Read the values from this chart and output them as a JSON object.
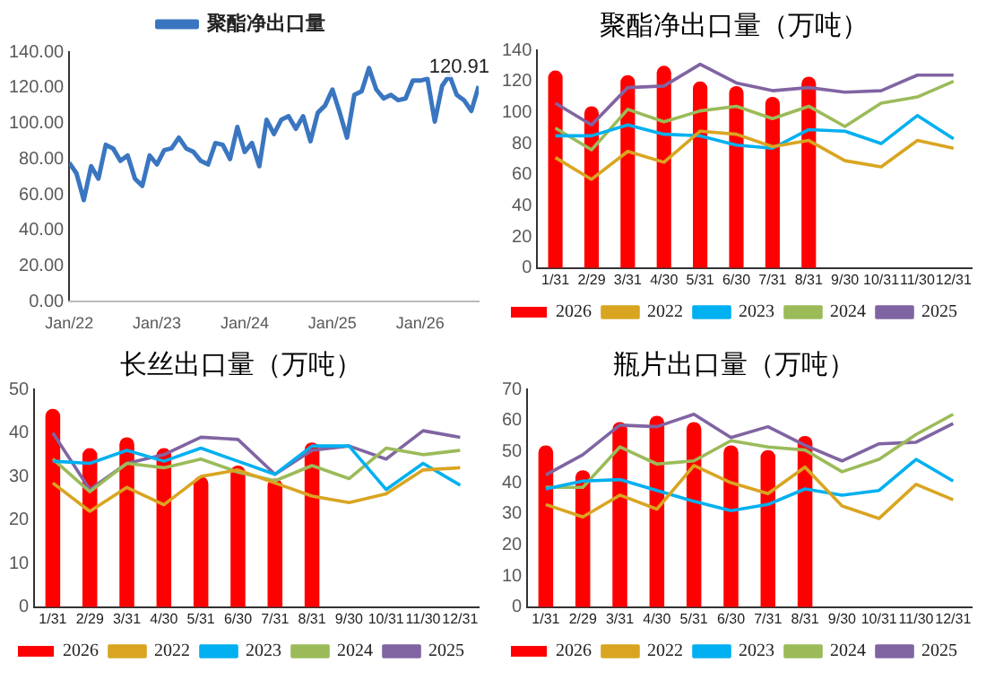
{
  "chart_data": [
    {
      "type": "line",
      "x": [
        "2022-01",
        "2022-02",
        "2022-03",
        "2022-04",
        "2022-05",
        "2022-06",
        "2022-07",
        "2022-08",
        "2022-09",
        "2022-10",
        "2022-11",
        "2022-12",
        "2023-01",
        "2023-02",
        "2023-03",
        "2023-04",
        "2023-05",
        "2023-06",
        "2023-07",
        "2023-08",
        "2023-09",
        "2023-10",
        "2023-11",
        "2023-12",
        "2024-01",
        "2024-02",
        "2024-03",
        "2024-04",
        "2024-05",
        "2024-06",
        "2024-07",
        "2024-08",
        "2024-09",
        "2024-10",
        "2024-11",
        "2024-12",
        "2025-01",
        "2025-02",
        "2025-03",
        "2025-04",
        "2025-05",
        "2025-06",
        "2025-07",
        "2025-08",
        "2025-09",
        "2025-10",
        "2025-11",
        "2025-12",
        "2026-01",
        "2026-02",
        "2026-03",
        "2026-04",
        "2026-05",
        "2026-06",
        "2026-07",
        "2026-08",
        "2026-09"
      ],
      "series": [
        {
          "name": "聚酯净出口量",
          "color": "#3a76c0",
          "values": [
            78,
            72,
            57,
            76,
            69,
            88,
            86,
            79,
            82,
            69,
            65,
            82,
            77,
            85,
            86,
            92,
            86,
            84,
            79,
            77,
            89,
            88,
            80,
            98,
            84,
            89,
            76,
            102,
            94,
            102,
            104,
            97,
            104,
            90,
            106,
            110,
            119,
            106,
            92,
            116,
            118,
            131,
            119,
            114,
            116,
            113,
            114,
            124,
            124,
            125,
            101,
            121,
            127,
            116,
            113,
            107,
            120.91
          ]
        }
      ],
      "xlim": [
        "2022-01",
        "2026-09"
      ],
      "xticks": [
        {
          "value": "2022-01",
          "label": "Jan/22"
        },
        {
          "value": "2023-01",
          "label": "Jan/23"
        },
        {
          "value": "2024-01",
          "label": "Jan/24"
        },
        {
          "value": "2025-01",
          "label": "Jan/25"
        },
        {
          "value": "2026-01",
          "label": "Jan/26"
        }
      ],
      "ylim": [
        0,
        140
      ],
      "yticks": [
        {
          "value": 0,
          "label": "0.00"
        },
        {
          "value": 20,
          "label": "20.00"
        },
        {
          "value": 40,
          "label": "40.00"
        },
        {
          "value": 60,
          "label": "60.00"
        },
        {
          "value": 80,
          "label": "80.00"
        },
        {
          "value": 100,
          "label": "100.00"
        },
        {
          "value": 120,
          "label": "120.00"
        },
        {
          "value": 140,
          "label": "140.00"
        }
      ],
      "annotations": [
        {
          "text": "120.91",
          "x": "2026-09",
          "y": 120.91
        }
      ],
      "legend": "top",
      "grid": false,
      "marker": "none"
    },
    {
      "type": "bar",
      "title": "聚酯净出口量（万吨）",
      "categories": [
        "1/31",
        "2/29",
        "3/31",
        "4/30",
        "5/31",
        "6/30",
        "7/31",
        "8/31",
        "9/30",
        "10/31",
        "11/30",
        "12/31"
      ],
      "series": [
        {
          "name": "2026",
          "type": "bar",
          "color": "#ff0000",
          "values": [
            127,
            104,
            124,
            130,
            120,
            117,
            110,
            123,
            null,
            null,
            null,
            null
          ]
        },
        {
          "name": "2022",
          "type": "line",
          "color": "#d9a521",
          "values": [
            71,
            57,
            75,
            68,
            88,
            86,
            78,
            82,
            69,
            65,
            82,
            77
          ]
        },
        {
          "name": "2023",
          "type": "line",
          "color": "#00b0f0",
          "values": [
            85,
            85,
            92,
            86,
            85,
            79,
            77,
            89,
            88,
            80,
            98,
            83
          ]
        },
        {
          "name": "2024",
          "type": "line",
          "color": "#9bbb59",
          "values": [
            90,
            76,
            102,
            94,
            101,
            104,
            96,
            104,
            91,
            106,
            110,
            120
          ]
        },
        {
          "name": "2025",
          "type": "line",
          "color": "#8064a2",
          "values": [
            106,
            92,
            116,
            117,
            131,
            119,
            114,
            116,
            113,
            114,
            124,
            124
          ]
        }
      ],
      "ylim": [
        0,
        140
      ],
      "yticks": [
        0,
        20,
        40,
        60,
        80,
        100,
        120,
        140
      ],
      "legend": "bottom",
      "grid": false,
      "marker": "none"
    },
    {
      "type": "bar",
      "title": "长丝出口量（万吨）",
      "categories": [
        "1/31",
        "2/29",
        "3/31",
        "4/30",
        "5/31",
        "6/30",
        "7/31",
        "8/31",
        "9/30",
        "10/31",
        "11/30",
        "12/31"
      ],
      "series": [
        {
          "name": "2026",
          "type": "bar",
          "color": "#ff0000",
          "values": [
            45.5,
            36.5,
            39,
            36.5,
            30,
            32.5,
            29.5,
            37.8,
            null,
            null,
            null,
            null
          ]
        },
        {
          "name": "2022",
          "type": "line",
          "color": "#d9a521",
          "values": [
            28.5,
            22,
            27.5,
            23.5,
            30,
            31.5,
            28.5,
            25.5,
            24,
            26,
            31.5,
            32
          ]
        },
        {
          "name": "2023",
          "type": "line",
          "color": "#00b0f0",
          "values": [
            33.5,
            33,
            36,
            33.5,
            36.5,
            33.5,
            30.5,
            37,
            37,
            27,
            33,
            28
          ]
        },
        {
          "name": "2024",
          "type": "line",
          "color": "#9bbb59",
          "values": [
            34,
            26.5,
            33,
            32,
            34,
            31,
            29,
            32.5,
            29.5,
            36.5,
            35,
            36
          ]
        },
        {
          "name": "2025",
          "type": "line",
          "color": "#8064a2",
          "values": [
            40,
            27,
            33,
            35,
            39,
            38.5,
            30.5,
            36,
            37,
            34,
            40.5,
            39
          ]
        }
      ],
      "ylim": [
        0,
        50
      ],
      "yticks": [
        0,
        10,
        20,
        30,
        40,
        50
      ],
      "legend": "bottom",
      "grid": false,
      "marker": "none"
    },
    {
      "type": "bar",
      "title": "瓶片出口量（万吨）",
      "categories": [
        "1/31",
        "2/29",
        "3/31",
        "4/30",
        "5/31",
        "6/30",
        "7/31",
        "8/31",
        "9/30",
        "10/31",
        "11/30",
        "12/31"
      ],
      "series": [
        {
          "name": "2026",
          "type": "bar",
          "color": "#ff0000",
          "values": [
            52,
            44,
            59.5,
            61.5,
            59.5,
            52,
            50.5,
            55,
            null,
            null,
            null,
            null
          ]
        },
        {
          "name": "2022",
          "type": "line",
          "color": "#d9a521",
          "values": [
            33,
            29,
            36,
            31.5,
            45.5,
            40,
            36.5,
            45,
            32.5,
            28.5,
            39.5,
            34.5
          ]
        },
        {
          "name": "2023",
          "type": "line",
          "color": "#00b0f0",
          "values": [
            38,
            40.5,
            41,
            37.5,
            34,
            31,
            33,
            38,
            36,
            37.5,
            47.5,
            40.5
          ]
        },
        {
          "name": "2024",
          "type": "line",
          "color": "#9bbb59",
          "values": [
            38.5,
            38.5,
            51.5,
            46,
            47,
            53.5,
            51.5,
            50.5,
            43.5,
            47.5,
            55.5,
            62
          ]
        },
        {
          "name": "2025",
          "type": "line",
          "color": "#8064a2",
          "values": [
            42.5,
            49,
            58.5,
            58,
            62,
            54.5,
            58,
            52,
            47,
            52.5,
            53,
            59
          ]
        }
      ],
      "ylim": [
        0,
        70
      ],
      "yticks": [
        0,
        10,
        20,
        30,
        40,
        50,
        60,
        70
      ],
      "legend": "bottom",
      "grid": false,
      "marker": "none"
    }
  ]
}
